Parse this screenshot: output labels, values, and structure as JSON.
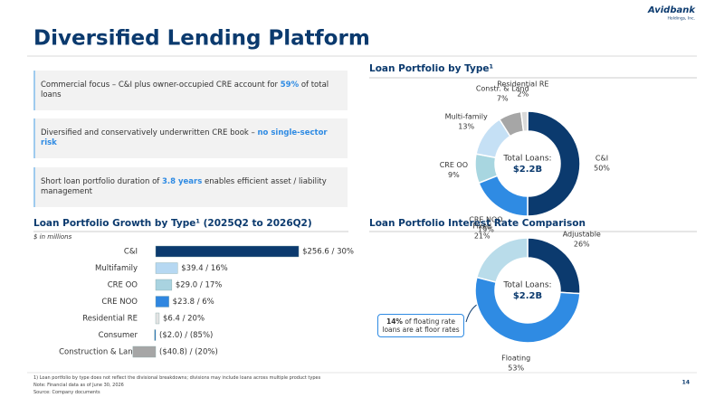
{
  "header": {
    "title": "Diversified Lending Platform",
    "logo": "Avidbank",
    "logo_sub": "Holdings, Inc."
  },
  "highlights": [
    [
      "Commercial focus – C&I plus owner-occupied CRE account for ",
      "59%",
      " of total loans"
    ],
    [
      "Diversified and conservatively underwritten CRE book – ",
      "no single-sector risk"
    ],
    [
      "Short loan portfolio duration of ",
      "3.8 years",
      " enables efficient asset / liability management"
    ]
  ],
  "chart_data": [
    {
      "type": "donut",
      "title": "Loan Portfolio by Type¹",
      "center_label": "Total Loans:",
      "center_value": "$2.2B",
      "categories": [
        "C&I",
        "CRE NOO",
        "CRE OO",
        "Multi-family",
        "Constr. & Land",
        "Residential RE"
      ],
      "values": [
        50,
        19,
        9,
        13,
        7,
        2
      ],
      "value_labels": [
        "50%",
        "19%",
        "9%",
        "13%",
        "7%",
        "2%"
      ],
      "colors": [
        "#0b3a6e",
        "#2f8be3",
        "#a8d6e0",
        "#c5e0f5",
        "#a6a6a6",
        "#d9d9d9"
      ]
    },
    {
      "type": "hbar",
      "title": "Loan Portfolio Growth by Type¹ (2025Q2 to 2026Q2)",
      "subtitle": "$ in millions",
      "categories": [
        "C&I",
        "Multifamily",
        "CRE OO",
        "CRE NOO",
        "Residential RE",
        "Consumer",
        "Construction & Land"
      ],
      "values": [
        256.6,
        39.4,
        29.0,
        23.8,
        6.4,
        -2.0,
        -40.8
      ],
      "value_labels": [
        "$256.6 / 30%",
        "$39.4 / 16%",
        "$29.0 / 17%",
        "$23.8 / 6%",
        "$6.4 / 20%",
        "($2.0) / (85%)",
        "($40.8) / (20%)"
      ],
      "colors": [
        "#0b3a6e",
        "#b6d8f2",
        "#a9d3e0",
        "#2f86e0",
        "#e3e3e3",
        "#1f6fb8",
        "#a6a6a6"
      ]
    },
    {
      "type": "donut",
      "title": "Loan Portfolio Interest Rate Comparison",
      "center_label": "Total Loans:",
      "center_value": "$2.2B",
      "categories": [
        "Adjustable",
        "Floating",
        "Fixed"
      ],
      "values": [
        26,
        53,
        21
      ],
      "value_labels": [
        "26%",
        "53%",
        "21%"
      ],
      "colors": [
        "#0b3a6e",
        "#2f8be3",
        "#b9dcea"
      ],
      "callout": [
        "14%",
        " of floating rate loans are at floor rates"
      ]
    }
  ],
  "footnotes": [
    "1)    Loan portfolio by type does not reflect the divisional breakdowns; divisions may include loans across multiple product types",
    "Note: Financial data as of June 30, 2026",
    "Source: Company documents"
  ],
  "page_number": "14"
}
